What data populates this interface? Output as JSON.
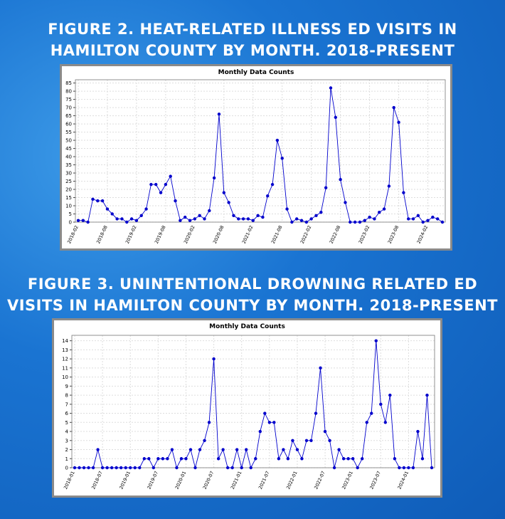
{
  "chart_data": [
    {
      "type": "line",
      "heading": [
        "FIGURE 2. HEAT-RELATED ILLNESS ED VISITS IN",
        "HAMILTON COUNTY BY MONTH. 2018-PRESENT"
      ],
      "title": "Monthly Data Counts",
      "color": "#0000cc",
      "grid": true,
      "categories": [
        "2018-02",
        null,
        null,
        null,
        null,
        null,
        "2018-08",
        null,
        null,
        null,
        null,
        null,
        "2019-02",
        null,
        null,
        null,
        null,
        null,
        "2019-08",
        null,
        null,
        null,
        null,
        null,
        "2020-02",
        null,
        null,
        null,
        null,
        null,
        "2020-08",
        null,
        null,
        null,
        null,
        null,
        "2021-02",
        null,
        null,
        null,
        null,
        null,
        "2021-08",
        null,
        null,
        null,
        null,
        null,
        "2022-02",
        null,
        null,
        null,
        null,
        null,
        "2022-08",
        null,
        null,
        null,
        null,
        null,
        "2023-02",
        null,
        null,
        null,
        null,
        null,
        "2023-08",
        null,
        null,
        null,
        null,
        null,
        "2024-02",
        null,
        null,
        null
      ],
      "values": [
        1,
        1,
        0,
        14,
        13,
        13,
        8,
        5,
        2,
        2,
        0,
        2,
        1,
        4,
        8,
        23,
        23,
        18,
        23,
        28,
        13,
        1,
        3,
        1,
        2,
        4,
        2,
        7,
        27,
        66,
        18,
        12,
        4,
        2,
        2,
        2,
        1,
        4,
        3,
        16,
        23,
        50,
        39,
        8,
        0,
        2,
        1,
        0,
        2,
        4,
        6,
        21,
        82,
        64,
        26,
        12,
        0,
        0,
        0,
        1,
        3,
        2,
        6,
        8,
        22,
        70,
        61,
        18,
        2,
        2,
        4,
        0,
        1,
        3,
        2,
        0
      ],
      "ylim": [
        0,
        87
      ],
      "yticks": [
        0,
        5,
        10,
        15,
        20,
        25,
        30,
        35,
        40,
        45,
        50,
        55,
        60,
        65,
        70,
        75,
        80,
        85
      ]
    },
    {
      "type": "line",
      "heading": [
        "FIGURE 3. UNINTENTIONAL DROWNING RELATED ED",
        "VISITS IN HAMILTON COUNTY BY MONTH. 2018-PRESENT"
      ],
      "title": "Monthly Data Counts",
      "color": "#0000cc",
      "grid": true,
      "categories": [
        "2018-01",
        null,
        null,
        null,
        null,
        null,
        "2018-07",
        null,
        null,
        null,
        null,
        null,
        "2019-01",
        null,
        null,
        null,
        null,
        null,
        "2019-07",
        null,
        null,
        null,
        null,
        null,
        "2020-01",
        null,
        null,
        null,
        null,
        null,
        "2020-07",
        null,
        null,
        null,
        null,
        null,
        "2021-01",
        null,
        null,
        null,
        null,
        null,
        "2021-07",
        null,
        null,
        null,
        null,
        null,
        "2022-01",
        null,
        null,
        null,
        null,
        null,
        "2022-07",
        null,
        null,
        null,
        null,
        null,
        "2023-01",
        null,
        null,
        null,
        null,
        null,
        "2023-07",
        null,
        null,
        null,
        null,
        null,
        "2024-01",
        null,
        null,
        null,
        null,
        null
      ],
      "values": [
        0,
        0,
        0,
        0,
        0,
        2,
        0,
        0,
        0,
        0,
        0,
        0,
        0,
        0,
        0,
        1,
        1,
        0,
        1,
        1,
        1,
        2,
        0,
        1,
        1,
        2,
        0,
        2,
        3,
        5,
        12,
        1,
        2,
        0,
        0,
        2,
        0,
        2,
        0,
        1,
        4,
        6,
        5,
        5,
        1,
        2,
        1,
        3,
        2,
        1,
        3,
        3,
        6,
        11,
        4,
        3,
        0,
        2,
        1,
        1,
        1,
        0,
        1,
        5,
        6,
        14,
        7,
        5,
        8,
        1,
        0,
        0,
        0,
        0,
        4,
        1,
        8,
        0
      ],
      "ylim": [
        0,
        14.6
      ],
      "yticks": [
        0,
        1,
        2,
        3,
        4,
        5,
        6,
        7,
        8,
        9,
        10,
        11,
        12,
        13,
        14
      ]
    }
  ]
}
